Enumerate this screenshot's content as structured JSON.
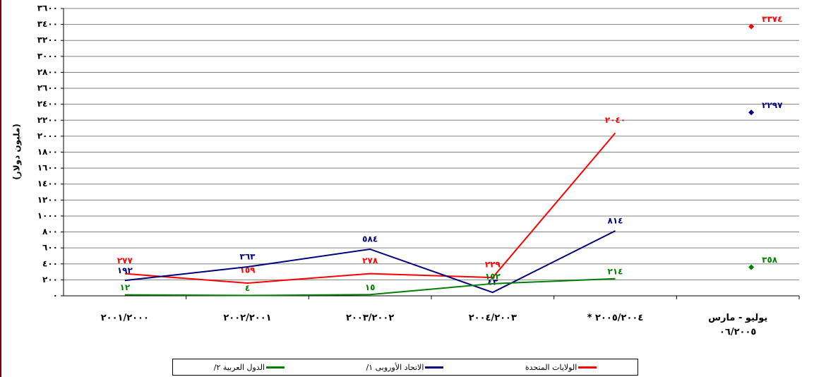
{
  "chart_data": {
    "type": "line",
    "y_label": "(مليون دولار)",
    "categories": [
      "٢٠٠١/٢٠٠٠",
      "٢٠٠٢/٢٠٠١",
      "٢٠٠٣/٢٠٠٢",
      "٢٠٠٤/٢٠٠٣",
      "* ٢٠٠٥/٢٠٠٤",
      "يوليو - مارس\n٠٦/٢٠٠٥"
    ],
    "series": [
      {
        "name": "الولايات المتحدة",
        "color": "#ff0000",
        "values": [
          277,
          159,
          278,
          229,
          2040,
          null
        ],
        "value_labels": [
          "٢٧٧",
          "١٥٩",
          "٢٧٨",
          "٢٢٩",
          "٢٠٤٠",
          null
        ],
        "marker_values": [
          null,
          null,
          null,
          null,
          null,
          3374
        ],
        "marker_value_labels": [
          null,
          null,
          null,
          null,
          null,
          "٣٣٧٤"
        ]
      },
      {
        "name": "الاتحاد الأوروبى ١/",
        "color": "#000080",
        "values": [
          192,
          363,
          584,
          43,
          814,
          null
        ],
        "value_labels": [
          "١٩٢",
          "٣٦٣",
          "٥٨٤",
          "٤٣",
          "٨١٤",
          null
        ],
        "marker_values": [
          null,
          null,
          null,
          null,
          null,
          2297
        ],
        "marker_value_labels": [
          null,
          null,
          null,
          null,
          null,
          "٢٢٩٧"
        ]
      },
      {
        "name": "الدول العربية ٢/",
        "color": "#008000",
        "values": [
          12,
          4,
          15,
          152,
          214,
          null
        ],
        "value_labels": [
          "١٢",
          "٤",
          "١٥",
          "١٥٢",
          "٢١٤",
          null
        ],
        "marker_values": [
          null,
          null,
          null,
          null,
          null,
          358
        ],
        "marker_value_labels": [
          null,
          null,
          null,
          null,
          null,
          "٣٥٨"
        ]
      }
    ],
    "ylim": [
      0,
      3600
    ],
    "yticks": [
      {
        "value": 0,
        "label": "٠"
      },
      {
        "value": 200,
        "label": "٢٠٠"
      },
      {
        "value": 400,
        "label": "٤٠٠"
      },
      {
        "value": 600,
        "label": "٦٠٠"
      },
      {
        "value": 800,
        "label": "٨٠٠"
      },
      {
        "value": 1000,
        "label": "١٠٠٠"
      },
      {
        "value": 1200,
        "label": "١٢٠٠"
      },
      {
        "value": 1400,
        "label": "١٤٠٠"
      },
      {
        "value": 1600,
        "label": "١٦٠٠"
      },
      {
        "value": 1800,
        "label": "١٨٠٠"
      },
      {
        "value": 2000,
        "label": "٢٠٠٠"
      },
      {
        "value": 2200,
        "label": "٢٢٠٠"
      },
      {
        "value": 2400,
        "label": "٢٤٠٠"
      },
      {
        "value": 2600,
        "label": "٢٦٠٠"
      },
      {
        "value": 2800,
        "label": "٢٨٠٠"
      },
      {
        "value": 3000,
        "label": "٣٠٠٠"
      },
      {
        "value": 3200,
        "label": "٣٢٠٠"
      },
      {
        "value": 3400,
        "label": "٣٤٠٠"
      },
      {
        "value": 3600,
        "label": "٣٦٠٠"
      }
    ],
    "grid": true,
    "legend": "bottom"
  }
}
